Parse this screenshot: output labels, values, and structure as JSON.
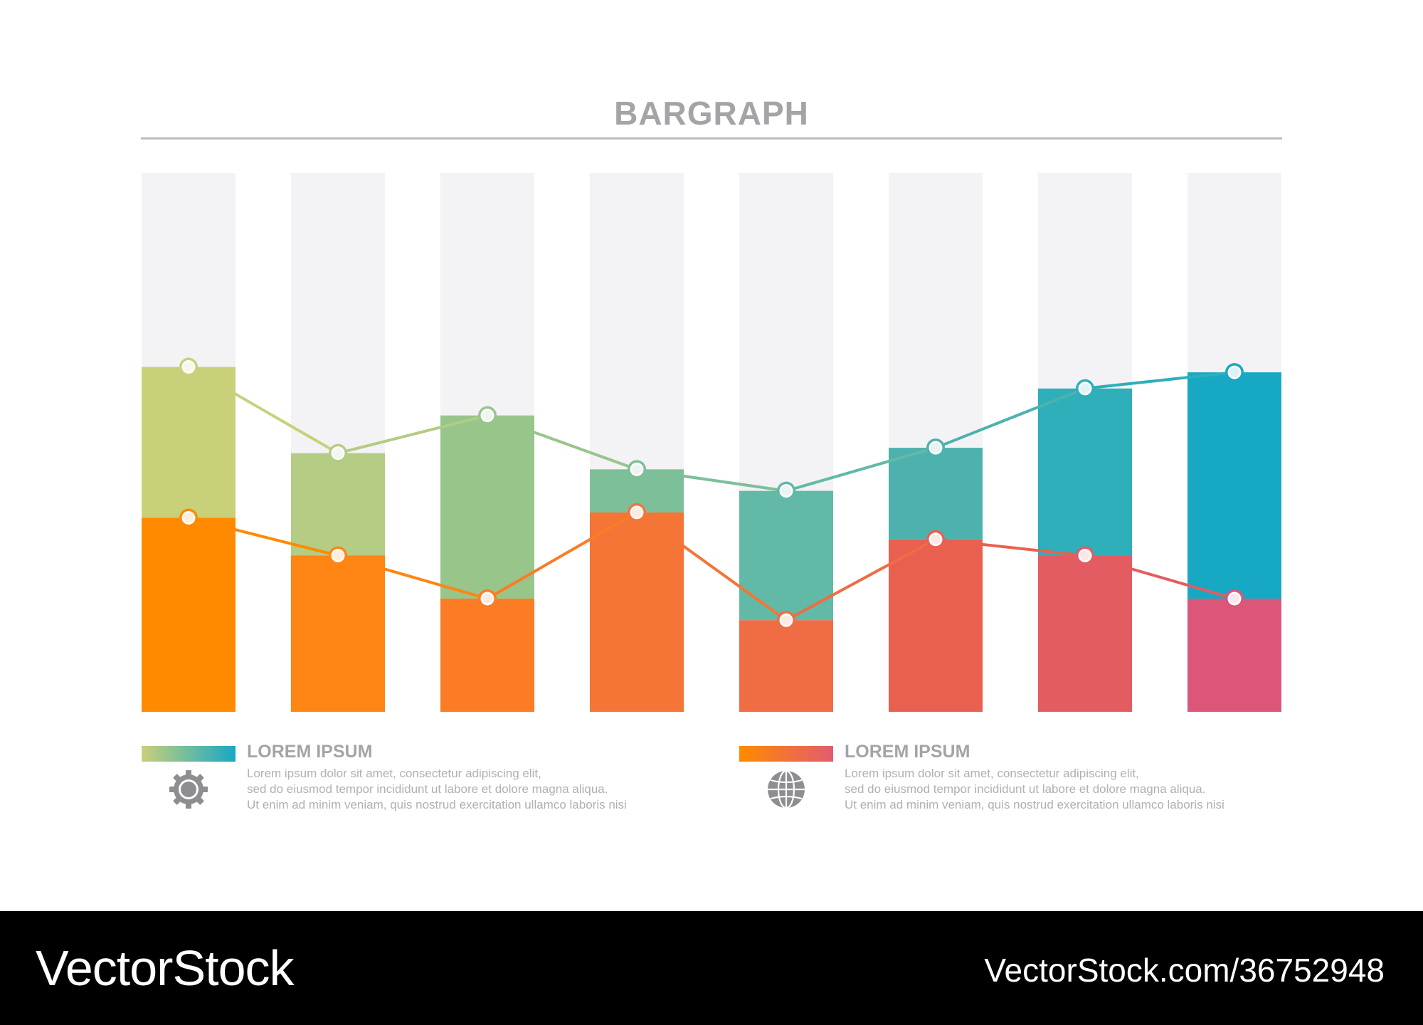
{
  "chart_data": {
    "type": "bar",
    "title": "BARGRAPH",
    "categories": [
      "",
      "",
      "",
      "",
      "",
      "",
      "",
      ""
    ],
    "ylim": [
      0,
      100
    ],
    "grid": false,
    "legend_placement": "bottom",
    "series": [
      {
        "values": [
          64,
          48,
          55,
          45,
          41,
          49,
          60,
          63
        ],
        "colors": [
          "#c9d07a",
          "#b4cc83",
          "#97c58a",
          "#7dbf98",
          "#62b9a6",
          "#4db2ad",
          "#2eafb9",
          "#17a8c4"
        ]
      },
      {
        "values": [
          36,
          29,
          21,
          37,
          17,
          32,
          29,
          21
        ],
        "colors": [
          "#ff8a00",
          "#ff8514",
          "#fb7c24",
          "#f47535",
          "#ef6c44",
          "#e96051",
          "#e35c62",
          "#dc567a"
        ]
      }
    ]
  },
  "legend": [
    {
      "title": "LOREM IPSUM",
      "gradient": [
        "#c9d07a",
        "#17a8c4"
      ],
      "icon": "gear-icon",
      "lines": [
        "Lorem ipsum dolor sit amet, consectetur adipiscing elit,",
        "sed do eiusmod tempor incididunt ut labore et dolore magna aliqua.",
        "Ut enim ad minim veniam, quis nostrud exercitation ullamco laboris nisi"
      ]
    },
    {
      "title": "LOREM IPSUM",
      "gradient": [
        "#ff8a00",
        "#e35c6e"
      ],
      "icon": "globe-icon",
      "lines": [
        "Lorem ipsum dolor sit amet, consectetur adipiscing elit,",
        "sed do eiusmod tempor incididunt ut labore et dolore magna aliqua.",
        "Ut enim ad minim veniam, quis nostrud exercitation ullamco laboris nisi"
      ]
    }
  ],
  "footer": {
    "brand": "VectorStock",
    "url": "VectorStock.com/36752948"
  },
  "colors": {
    "track": "#f3f2f5",
    "title": "#a4a4a8",
    "legend_text": "#b0b0b4",
    "icon": "#8d8d92"
  }
}
